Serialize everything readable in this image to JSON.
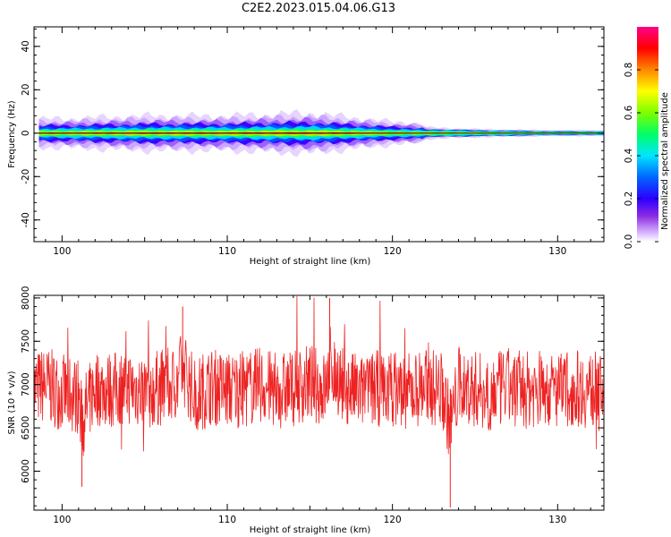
{
  "title": "C2E2.2023.015.04.06.G13",
  "chart_data": [
    {
      "type": "heatmap",
      "xlabel": "Height of straight line (km)",
      "ylabel": "Frequency (Hz)",
      "xlim": [
        98.3,
        132.8
      ],
      "ylim": [
        -50,
        49
      ],
      "xticks": [
        100,
        110,
        120,
        130
      ],
      "yticks": [
        -40,
        -20,
        0,
        20,
        40
      ],
      "colorbar": {
        "label": "Normalized spectral amplitude",
        "range": [
          0.0,
          1.0
        ],
        "ticks": [
          0.0,
          0.2,
          0.4,
          0.6,
          0.8
        ],
        "colormap": "rainbow (white-purple-blue-cyan-green-yellow-red-pink)"
      },
      "description_points": [
        {
          "x": 100,
          "halfwidth_hz": 2.5,
          "peak": 0.9
        },
        {
          "x": 105,
          "halfwidth_hz": 3.0,
          "peak": 0.85
        },
        {
          "x": 110,
          "halfwidth_hz": 3.0,
          "peak": 0.85
        },
        {
          "x": 115,
          "halfwidth_hz": 3.5,
          "peak": 0.9
        },
        {
          "x": 120,
          "halfwidth_hz": 2.0,
          "peak": 0.95
        },
        {
          "x": 125,
          "halfwidth_hz": 1.2,
          "peak": 0.98
        },
        {
          "x": 130,
          "halfwidth_hz": 0.8,
          "peak": 1.0
        }
      ]
    },
    {
      "type": "line",
      "xlabel": "Height of straight line (km)",
      "ylabel": "SNR (10 * v/v)",
      "xlim": [
        98.3,
        132.8
      ],
      "ylim": [
        5550,
        8030
      ],
      "xticks": [
        100,
        110,
        120,
        130
      ],
      "yticks": [
        6000,
        6500,
        7000,
        7500,
        8000
      ],
      "series": [
        {
          "color": "#ee2222",
          "x": [
            98.3,
            99,
            100,
            101,
            101.2,
            102,
            103,
            104,
            105,
            106,
            107,
            107.3,
            108,
            109,
            110,
            111,
            112,
            113,
            114,
            115,
            116,
            116.2,
            117,
            118,
            119,
            120,
            121,
            122,
            123,
            123.5,
            124,
            125,
            126,
            127,
            128,
            129,
            130,
            131,
            132,
            132.8
          ],
          "y": [
            6950,
            7100,
            6800,
            6700,
            5820,
            7000,
            6900,
            7050,
            6850,
            7000,
            7200,
            7900,
            6700,
            7050,
            6900,
            6950,
            7100,
            6850,
            7000,
            7200,
            6900,
            8000,
            7050,
            6800,
            6950,
            7000,
            6850,
            7100,
            6900,
            5580,
            7000,
            6950,
            6800,
            7050,
            6900,
            7000,
            6850,
            7000,
            6900,
            6950
          ]
        }
      ]
    }
  ]
}
